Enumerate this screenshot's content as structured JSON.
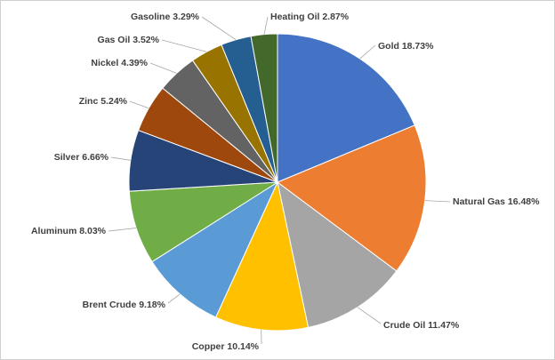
{
  "chart_data": {
    "type": "pie",
    "title": "",
    "slices": [
      {
        "label": "Gold",
        "value": 18.73,
        "display": "Gold 18.73%",
        "color": "#4472C4"
      },
      {
        "label": "Natural Gas",
        "value": 16.48,
        "display": "Natural Gas 16.48%",
        "color": "#ED7D31"
      },
      {
        "label": "Crude Oil",
        "value": 11.47,
        "display": "Crude Oil  11.47%",
        "color": "#A5A5A5"
      },
      {
        "label": "Copper",
        "value": 10.14,
        "display": "Copper  10.14%",
        "color": "#FFC000"
      },
      {
        "label": "Brent Crude",
        "value": 9.18,
        "display": "Brent Crude 9.18%",
        "color": "#5B9BD5"
      },
      {
        "label": "Aluminum",
        "value": 8.03,
        "display": "Aluminum  8.03%",
        "color": "#70AD47"
      },
      {
        "label": "Silver",
        "value": 6.66,
        "display": "Silver 6.66%",
        "color": "#264478"
      },
      {
        "label": "Zinc",
        "value": 5.24,
        "display": "Zinc 5.24%",
        "color": "#9E480E"
      },
      {
        "label": "Nickel",
        "value": 4.39,
        "display": "Nickel 4.39%",
        "color": "#636363"
      },
      {
        "label": "Gas Oil",
        "value": 3.52,
        "display": "Gas Oil 3.52%",
        "color": "#997300"
      },
      {
        "label": "Gasoline",
        "value": 3.29,
        "display": "Gasoline  3.29%",
        "color": "#255E91"
      },
      {
        "label": "Heating Oil",
        "value": 2.87,
        "display": "Heating Oil 2.87%",
        "color": "#43682B"
      }
    ]
  }
}
